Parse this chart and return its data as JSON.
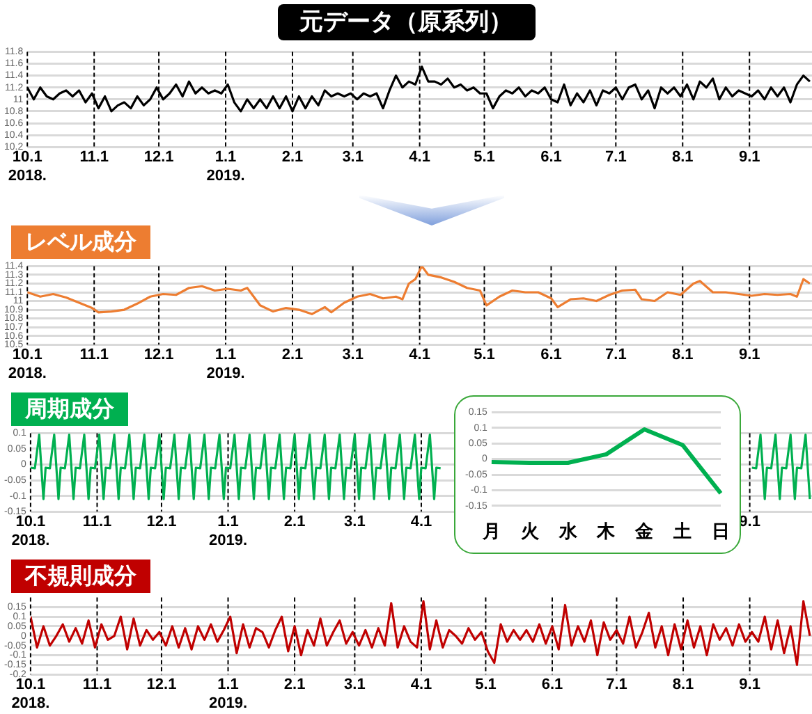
{
  "chart_data": [
    {
      "type": "line",
      "title": "元データ（原系列）",
      "marker": "none",
      "grid": true,
      "xlim": [
        "2018-10-01",
        "2019-09-30"
      ],
      "ylim": [
        10.2,
        11.8
      ],
      "xticks": [
        {
          "value": "2018-10-01",
          "label": "10.1\n2018."
        },
        {
          "value": "2018-11-01",
          "label": "11.1"
        },
        {
          "value": "2018-12-01",
          "label": "12.1"
        },
        {
          "value": "2019-01-01",
          "label": "1.1\n2019."
        },
        {
          "value": "2019-02-01",
          "label": "2.1"
        },
        {
          "value": "2019-03-01",
          "label": "3.1"
        },
        {
          "value": "2019-04-01",
          "label": "4.1"
        },
        {
          "value": "2019-05-01",
          "label": "5.1"
        },
        {
          "value": "2019-06-01",
          "label": "6.1"
        },
        {
          "value": "2019-07-01",
          "label": "7.1"
        },
        {
          "value": "2019-08-01",
          "label": "8.1"
        },
        {
          "value": "2019-09-01",
          "label": "9.1"
        }
      ],
      "yticks": [
        10.2,
        10.4,
        10.6,
        10.8,
        11,
        11.2,
        11.4,
        11.6,
        11.8
      ],
      "x": [
        "2018-10-01",
        "2018-10-04",
        "2018-10-07",
        "2018-10-10",
        "2018-10-13",
        "2018-10-16",
        "2018-10-19",
        "2018-10-22",
        "2018-10-25",
        "2018-10-28",
        "2018-10-31",
        "2018-11-03",
        "2018-11-06",
        "2018-11-09",
        "2018-11-12",
        "2018-11-15",
        "2018-11-18",
        "2018-11-21",
        "2018-11-24",
        "2018-11-27",
        "2018-11-30",
        "2018-12-03",
        "2018-12-06",
        "2018-12-09",
        "2018-12-12",
        "2018-12-15",
        "2018-12-18",
        "2018-12-21",
        "2018-12-24",
        "2018-12-27",
        "2018-12-30",
        "2019-01-02",
        "2019-01-05",
        "2019-01-08",
        "2019-01-11",
        "2019-01-14",
        "2019-01-17",
        "2019-01-20",
        "2019-01-23",
        "2019-01-26",
        "2019-01-29",
        "2019-02-01",
        "2019-02-04",
        "2019-02-07",
        "2019-02-10",
        "2019-02-13",
        "2019-02-16",
        "2019-02-19",
        "2019-02-22",
        "2019-02-25",
        "2019-02-28",
        "2019-03-03",
        "2019-03-06",
        "2019-03-09",
        "2019-03-12",
        "2019-03-15",
        "2019-03-18",
        "2019-03-21",
        "2019-03-24",
        "2019-03-27",
        "2019-03-30",
        "2019-04-02",
        "2019-04-05",
        "2019-04-08",
        "2019-04-11",
        "2019-04-14",
        "2019-04-17",
        "2019-04-20",
        "2019-04-23",
        "2019-04-26",
        "2019-04-29",
        "2019-05-02",
        "2019-05-05",
        "2019-05-08",
        "2019-05-11",
        "2019-05-14",
        "2019-05-17",
        "2019-05-20",
        "2019-05-23",
        "2019-05-26",
        "2019-05-29",
        "2019-06-01",
        "2019-06-04",
        "2019-06-07",
        "2019-06-10",
        "2019-06-13",
        "2019-06-16",
        "2019-06-19",
        "2019-06-22",
        "2019-06-25",
        "2019-06-28",
        "2019-07-01",
        "2019-07-04",
        "2019-07-07",
        "2019-07-10",
        "2019-07-13",
        "2019-07-16",
        "2019-07-19",
        "2019-07-22",
        "2019-07-25",
        "2019-07-28",
        "2019-07-31",
        "2019-08-03",
        "2019-08-06",
        "2019-08-09",
        "2019-08-12",
        "2019-08-15",
        "2019-08-18",
        "2019-08-21",
        "2019-08-24",
        "2019-08-27",
        "2019-08-30",
        "2019-09-02",
        "2019-09-05",
        "2019-09-08",
        "2019-09-11",
        "2019-09-14",
        "2019-09-17",
        "2019-09-20",
        "2019-09-23",
        "2019-09-26",
        "2019-09-29"
      ],
      "series": [
        {
          "color": "#000000",
          "values": [
            11.2,
            11.0,
            11.2,
            11.05,
            11.0,
            11.1,
            11.15,
            11.05,
            11.15,
            10.95,
            11.1,
            10.85,
            11.05,
            10.8,
            10.9,
            10.95,
            10.85,
            11.05,
            10.9,
            11.0,
            11.2,
            11.0,
            11.1,
            11.25,
            11.05,
            11.3,
            11.1,
            11.2,
            11.1,
            11.15,
            11.1,
            11.25,
            10.95,
            10.8,
            11.0,
            10.85,
            11.0,
            10.85,
            11.05,
            10.85,
            11.05,
            10.8,
            11.05,
            10.85,
            11.05,
            10.9,
            11.15,
            11.05,
            11.1,
            11.05,
            11.1,
            11.0,
            11.1,
            11.05,
            11.1,
            10.85,
            11.15,
            11.4,
            11.2,
            11.3,
            11.25,
            11.55,
            11.3,
            11.3,
            11.25,
            11.35,
            11.2,
            11.25,
            11.15,
            11.2,
            11.1,
            11.1,
            10.85,
            11.05,
            11.15,
            11.1,
            11.2,
            11.05,
            11.15,
            11.1,
            11.2,
            11.0,
            10.95,
            11.25,
            10.9,
            11.1,
            10.95,
            11.15,
            10.9,
            11.15,
            11.1,
            11.2,
            11.0,
            11.2,
            11.25,
            11.0,
            11.15,
            10.85,
            11.2,
            11.1,
            11.2,
            11.05,
            11.25,
            11.0,
            11.3,
            11.2,
            11.35,
            11.0,
            11.2,
            11.05,
            11.15,
            11.1,
            11.05,
            11.15,
            11.0,
            11.2,
            11.05,
            11.2,
            10.95,
            11.25,
            11.4,
            11.3
          ]
        }
      ]
    },
    {
      "type": "line",
      "title": "レベル成分",
      "marker": "none",
      "grid": true,
      "xlim": [
        "2018-10-01",
        "2019-09-30"
      ],
      "ylim": [
        10.5,
        11.4
      ],
      "xticks": [
        {
          "value": "2018-10-01",
          "label": "10.1\n2018."
        },
        {
          "value": "2018-11-01",
          "label": "11.1"
        },
        {
          "value": "2018-12-01",
          "label": "12.1"
        },
        {
          "value": "2019-01-01",
          "label": "1.1\n2019."
        },
        {
          "value": "2019-02-01",
          "label": "2.1"
        },
        {
          "value": "2019-03-01",
          "label": "3.1"
        },
        {
          "value": "2019-04-01",
          "label": "4.1"
        },
        {
          "value": "2019-05-01",
          "label": "5.1"
        },
        {
          "value": "2019-06-01",
          "label": "6.1"
        },
        {
          "value": "2019-07-01",
          "label": "7.1"
        },
        {
          "value": "2019-08-01",
          "label": "8.1"
        },
        {
          "value": "2019-09-01",
          "label": "9.1"
        }
      ],
      "yticks": [
        10.5,
        10.6,
        10.7,
        10.8,
        10.9,
        11,
        11.1,
        11.2,
        11.3,
        11.4
      ],
      "series": [
        {
          "color": "#ed7d31",
          "x": [
            "2018-10-01",
            "2018-10-07",
            "2018-10-13",
            "2018-10-19",
            "2018-10-25",
            "2018-10-31",
            "2018-11-03",
            "2018-11-09",
            "2018-11-15",
            "2018-11-21",
            "2018-11-27",
            "2018-12-03",
            "2018-12-09",
            "2018-12-15",
            "2018-12-21",
            "2018-12-27",
            "2019-01-02",
            "2019-01-08",
            "2019-01-11",
            "2019-01-17",
            "2019-01-23",
            "2019-01-29",
            "2019-02-04",
            "2019-02-10",
            "2019-02-16",
            "2019-02-19",
            "2019-02-25",
            "2019-03-03",
            "2019-03-09",
            "2019-03-15",
            "2019-03-21",
            "2019-03-24",
            "2019-03-27",
            "2019-03-30",
            "2019-04-02",
            "2019-04-05",
            "2019-04-11",
            "2019-04-17",
            "2019-04-23",
            "2019-04-29",
            "2019-05-02",
            "2019-05-08",
            "2019-05-14",
            "2019-05-20",
            "2019-05-26",
            "2019-06-01",
            "2019-06-04",
            "2019-06-10",
            "2019-06-16",
            "2019-06-22",
            "2019-06-28",
            "2019-07-04",
            "2019-07-10",
            "2019-07-13",
            "2019-07-19",
            "2019-07-25",
            "2019-07-31",
            "2019-08-06",
            "2019-08-09",
            "2019-08-15",
            "2019-08-21",
            "2019-08-27",
            "2019-09-02",
            "2019-09-08",
            "2019-09-14",
            "2019-09-20",
            "2019-09-23",
            "2019-09-26",
            "2019-09-29"
          ],
          "values": [
            11.1,
            11.05,
            11.08,
            11.04,
            10.98,
            10.92,
            10.87,
            10.88,
            10.9,
            10.97,
            11.05,
            11.08,
            11.07,
            11.15,
            11.17,
            11.12,
            11.14,
            11.12,
            11.15,
            10.95,
            10.88,
            10.92,
            10.9,
            10.85,
            10.93,
            10.87,
            10.98,
            11.05,
            11.08,
            11.03,
            11.05,
            11.02,
            11.2,
            11.25,
            11.4,
            11.3,
            11.27,
            11.22,
            11.15,
            11.12,
            10.95,
            11.05,
            11.12,
            11.1,
            11.1,
            11.03,
            10.93,
            11.02,
            11.03,
            11.0,
            11.07,
            11.12,
            11.13,
            11.02,
            11.0,
            11.1,
            11.07,
            11.2,
            11.23,
            11.1,
            11.1,
            11.08,
            11.06,
            11.08,
            11.07,
            11.08,
            11.05,
            11.25,
            11.2
          ]
        }
      ]
    },
    {
      "type": "line",
      "title": "周期成分",
      "marker": "none",
      "grid": true,
      "xlim": [
        "2018-10-01",
        "2019-09-30"
      ],
      "ylim": [
        -0.15,
        0.1
      ],
      "xticks": [
        {
          "value": "2018-10-01",
          "label": "10.1\n2018."
        },
        {
          "value": "2018-11-01",
          "label": "11.1"
        },
        {
          "value": "2018-12-01",
          "label": "12.1"
        },
        {
          "value": "2019-01-01",
          "label": "1.1\n2019."
        },
        {
          "value": "2019-02-01",
          "label": "2.1"
        },
        {
          "value": "2019-03-01",
          "label": "3.1"
        },
        {
          "value": "2019-04-01",
          "label": "4.1"
        },
        {
          "value": "2019-09-01",
          "label": "9.1"
        }
      ],
      "yticks": [
        -0.15,
        -0.1,
        -0.05,
        0,
        0.05,
        0.1
      ],
      "series": [
        {
          "color": "#00b050",
          "x": [
            "2018-10-01",
            "2018-10-03",
            "2018-10-05",
            "2018-10-07",
            "2018-10-08",
            "2018-10-10",
            "2018-10-12",
            "2018-10-14",
            "2018-10-15",
            "2018-10-17",
            "2018-10-19",
            "2018-10-21",
            "2018-10-22",
            "2018-10-24",
            "2018-10-26",
            "2018-10-28",
            "2018-10-29",
            "2018-10-31",
            "2018-11-02",
            "2018-11-04",
            "2018-11-05",
            "2018-11-07",
            "2018-11-09",
            "2018-11-11",
            "2018-11-12",
            "2018-11-14",
            "2018-11-16",
            "2018-11-18",
            "2018-11-19",
            "2018-11-21",
            "2018-11-23",
            "2018-11-25",
            "2018-11-26",
            "2018-11-28",
            "2018-11-30",
            "2018-12-02",
            "2018-12-03",
            "2018-12-05",
            "2018-12-07",
            "2018-12-09",
            "2018-12-10",
            "2018-12-12",
            "2018-12-14",
            "2018-12-16",
            "2018-12-17",
            "2018-12-19",
            "2018-12-21",
            "2018-12-23",
            "2018-12-24",
            "2018-12-26",
            "2018-12-28",
            "2018-12-30",
            "2018-12-31",
            "2019-01-02",
            "2019-01-04",
            "2019-01-06",
            "2019-01-07",
            "2019-01-09",
            "2019-01-11",
            "2019-01-13",
            "2019-01-14",
            "2019-01-16",
            "2019-01-18",
            "2019-01-20",
            "2019-01-21",
            "2019-01-23",
            "2019-01-25",
            "2019-01-27",
            "2019-01-28",
            "2019-01-30",
            "2019-02-01",
            "2019-02-03",
            "2019-02-04",
            "2019-02-06",
            "2019-02-08",
            "2019-02-10",
            "2019-02-11",
            "2019-02-13",
            "2019-02-15",
            "2019-02-17",
            "2019-02-18",
            "2019-02-20",
            "2019-02-22",
            "2019-02-24",
            "2019-02-25",
            "2019-02-27",
            "2019-03-01",
            "2019-03-03",
            "2019-03-04",
            "2019-03-06",
            "2019-03-08",
            "2019-03-10",
            "2019-03-11",
            "2019-03-13",
            "2019-03-15",
            "2019-03-17",
            "2019-03-18",
            "2019-03-20",
            "2019-03-22",
            "2019-03-24",
            "2019-03-25",
            "2019-03-27",
            "2019-03-29",
            "2019-03-31",
            "2019-04-01",
            "2019-04-03",
            "2019-04-05",
            "2019-04-07",
            "2019-04-08",
            "2019-04-10",
            "2019-04-11",
            "2019-09-02",
            "2019-09-04",
            "2019-09-06",
            "2019-09-08",
            "2019-09-09",
            "2019-09-11",
            "2019-09-13",
            "2019-09-15",
            "2019-09-16",
            "2019-09-18",
            "2019-09-20",
            "2019-09-22",
            "2019-09-23",
            "2019-09-25",
            "2019-09-27",
            "2019-09-29"
          ],
          "values": [
            -0.01,
            -0.012,
            0.095,
            -0.11,
            -0.01,
            -0.012,
            0.095,
            -0.11,
            -0.01,
            -0.012,
            0.095,
            -0.11,
            -0.01,
            -0.012,
            0.095,
            -0.11,
            -0.01,
            -0.012,
            0.095,
            -0.11,
            -0.01,
            -0.012,
            0.095,
            -0.11,
            -0.01,
            -0.012,
            0.095,
            -0.11,
            -0.01,
            -0.012,
            0.095,
            -0.11,
            -0.01,
            -0.012,
            0.095,
            -0.11,
            -0.01,
            -0.012,
            0.095,
            -0.11,
            -0.01,
            -0.012,
            0.095,
            -0.11,
            -0.01,
            -0.012,
            0.095,
            -0.11,
            -0.01,
            -0.012,
            0.095,
            -0.11,
            -0.01,
            -0.012,
            0.095,
            -0.11,
            -0.01,
            -0.012,
            0.095,
            -0.11,
            -0.01,
            -0.012,
            0.095,
            -0.11,
            -0.01,
            -0.012,
            0.095,
            -0.11,
            -0.01,
            -0.012,
            0.095,
            -0.11,
            -0.01,
            -0.012,
            0.095,
            -0.11,
            -0.01,
            -0.012,
            0.095,
            -0.11,
            -0.01,
            -0.012,
            0.095,
            -0.11,
            -0.01,
            -0.012,
            0.095,
            -0.11,
            -0.01,
            -0.012,
            0.095,
            -0.11,
            -0.01,
            -0.012,
            0.095,
            -0.11,
            -0.01,
            -0.012,
            0.095,
            -0.11,
            -0.01,
            -0.012,
            0.095,
            -0.11,
            -0.01,
            -0.012,
            0.095,
            -0.11,
            -0.01,
            -0.012,
            null,
            -0.01,
            -0.012,
            0.095,
            -0.11,
            -0.01,
            -0.012,
            0.095,
            -0.11,
            -0.01,
            -0.012,
            0.095,
            -0.11,
            -0.01,
            -0.012,
            0.095,
            -0.11
          ]
        }
      ]
    },
    {
      "type": "line",
      "marker": "none",
      "grid": "y",
      "categories": [
        "月",
        "火",
        "水",
        "木",
        "金",
        "土",
        "日"
      ],
      "ylim": [
        -0.15,
        0.15
      ],
      "yticks": [
        -0.15,
        -0.1,
        -0.05,
        0,
        0.05,
        0.1,
        0.15
      ],
      "series": [
        {
          "color": "#00b050",
          "values": [
            -0.01,
            -0.012,
            -0.012,
            0.015,
            0.095,
            0.045,
            -0.11
          ]
        }
      ]
    },
    {
      "type": "line",
      "title": "不規則成分",
      "marker": "none",
      "grid": true,
      "xlim": [
        "2018-10-01",
        "2019-09-30"
      ],
      "ylim": [
        -0.2,
        0.2
      ],
      "xticks": [
        {
          "value": "2018-10-01",
          "label": "10.1\n2018."
        },
        {
          "value": "2018-11-01",
          "label": "11.1"
        },
        {
          "value": "2018-12-01",
          "label": "12.1"
        },
        {
          "value": "2019-01-01",
          "label": "1.1\n2019."
        },
        {
          "value": "2019-02-01",
          "label": "2.1"
        },
        {
          "value": "2019-03-01",
          "label": "3.1"
        },
        {
          "value": "2019-04-01",
          "label": "4.1"
        },
        {
          "value": "2019-05-01",
          "label": "5.1"
        },
        {
          "value": "2019-06-01",
          "label": "6.1"
        },
        {
          "value": "2019-07-01",
          "label": "7.1"
        },
        {
          "value": "2019-08-01",
          "label": "8.1"
        },
        {
          "value": "2019-09-01",
          "label": "9.1"
        }
      ],
      "yticks": [
        -0.2,
        -0.15,
        -0.1,
        -0.05,
        0,
        0.05,
        0.1,
        0.15
      ],
      "x": [
        "2018-10-01",
        "2018-10-04",
        "2018-10-07",
        "2018-10-10",
        "2018-10-13",
        "2018-10-16",
        "2018-10-19",
        "2018-10-22",
        "2018-10-25",
        "2018-10-28",
        "2018-10-31",
        "2018-11-03",
        "2018-11-06",
        "2018-11-09",
        "2018-11-12",
        "2018-11-15",
        "2018-11-18",
        "2018-11-21",
        "2018-11-24",
        "2018-11-27",
        "2018-11-30",
        "2018-12-03",
        "2018-12-06",
        "2018-12-09",
        "2018-12-12",
        "2018-12-15",
        "2018-12-18",
        "2018-12-21",
        "2018-12-24",
        "2018-12-27",
        "2018-12-30",
        "2019-01-02",
        "2019-01-05",
        "2019-01-08",
        "2019-01-11",
        "2019-01-14",
        "2019-01-17",
        "2019-01-20",
        "2019-01-23",
        "2019-01-26",
        "2019-01-29",
        "2019-02-01",
        "2019-02-04",
        "2019-02-07",
        "2019-02-10",
        "2019-02-13",
        "2019-02-16",
        "2019-02-19",
        "2019-02-22",
        "2019-02-25",
        "2019-02-28",
        "2019-03-03",
        "2019-03-06",
        "2019-03-09",
        "2019-03-12",
        "2019-03-15",
        "2019-03-18",
        "2019-03-21",
        "2019-03-24",
        "2019-03-27",
        "2019-03-30",
        "2019-04-02",
        "2019-04-05",
        "2019-04-08",
        "2019-04-11",
        "2019-04-14",
        "2019-04-17",
        "2019-04-20",
        "2019-04-23",
        "2019-04-26",
        "2019-04-29",
        "2019-05-02",
        "2019-05-05",
        "2019-05-08",
        "2019-05-11",
        "2019-05-14",
        "2019-05-17",
        "2019-05-20",
        "2019-05-23",
        "2019-05-26",
        "2019-05-29",
        "2019-06-01",
        "2019-06-04",
        "2019-06-07",
        "2019-06-10",
        "2019-06-13",
        "2019-06-16",
        "2019-06-19",
        "2019-06-22",
        "2019-06-25",
        "2019-06-28",
        "2019-07-01",
        "2019-07-04",
        "2019-07-07",
        "2019-07-10",
        "2019-07-13",
        "2019-07-16",
        "2019-07-19",
        "2019-07-22",
        "2019-07-25",
        "2019-07-28",
        "2019-07-31",
        "2019-08-03",
        "2019-08-06",
        "2019-08-09",
        "2019-08-12",
        "2019-08-15",
        "2019-08-18",
        "2019-08-21",
        "2019-08-24",
        "2019-08-27",
        "2019-08-30",
        "2019-09-02",
        "2019-09-05",
        "2019-09-08",
        "2019-09-11",
        "2019-09-14",
        "2019-09-17",
        "2019-09-20",
        "2019-09-23",
        "2019-09-26",
        "2019-09-29"
      ],
      "series": [
        {
          "color": "#c00000",
          "values": [
            0.1,
            -0.06,
            0.05,
            -0.05,
            0.0,
            0.06,
            -0.03,
            0.04,
            -0.04,
            0.08,
            -0.06,
            0.06,
            -0.02,
            0.0,
            0.1,
            -0.07,
            0.09,
            -0.05,
            0.03,
            -0.02,
            0.02,
            -0.05,
            0.05,
            -0.06,
            0.04,
            -0.07,
            0.05,
            -0.02,
            0.06,
            -0.03,
            0.03,
            0.1,
            -0.09,
            0.06,
            -0.06,
            0.04,
            0.02,
            -0.06,
            0.03,
            0.1,
            -0.08,
            0.05,
            -0.1,
            0.03,
            -0.05,
            0.09,
            -0.05,
            0.02,
            0.08,
            -0.04,
            0.02,
            -0.05,
            0.03,
            -0.06,
            0.04,
            -0.05,
            0.17,
            -0.06,
            0.05,
            -0.03,
            -0.06,
            0.18,
            -0.07,
            0.08,
            -0.06,
            0.03,
            0.0,
            -0.04,
            0.04,
            -0.02,
            0.02,
            -0.08,
            -0.14,
            0.06,
            -0.03,
            0.03,
            -0.02,
            0.03,
            -0.03,
            0.06,
            -0.04,
            0.05,
            -0.07,
            0.16,
            -0.05,
            0.05,
            -0.03,
            0.08,
            -0.1,
            0.07,
            -0.02,
            0.03,
            -0.04,
            0.1,
            -0.06,
            0.02,
            0.12,
            -0.06,
            0.05,
            -0.1,
            0.06,
            -0.07,
            0.08,
            -0.06,
            0.05,
            -0.1,
            0.06,
            -0.02,
            0.04,
            -0.05,
            0.06,
            -0.03,
            0.02,
            -0.03,
            0.1,
            -0.07,
            0.08,
            -0.09,
            0.05,
            -0.15,
            0.18,
            0.0
          ]
        }
      ]
    }
  ]
}
